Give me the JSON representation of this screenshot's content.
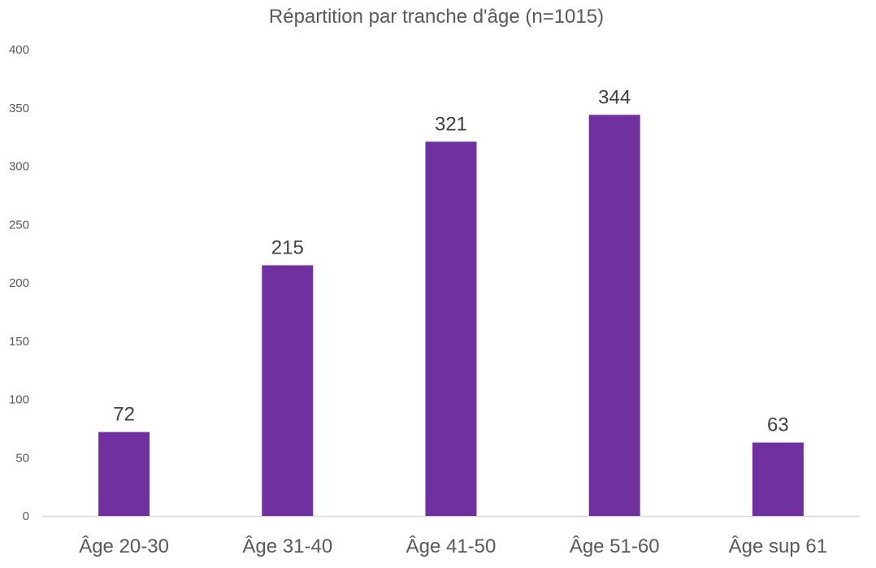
{
  "chart_data": {
    "type": "bar",
    "title": "Répartition par tranche d'âge (n=1015)",
    "xlabel": "",
    "ylabel": "",
    "categories": [
      "Âge 20-30",
      "Âge 31-40",
      "Âge 41-50",
      "Âge 51-60",
      "Âge sup 61"
    ],
    "values": [
      72,
      215,
      321,
      344,
      63
    ],
    "data_labels": [
      "72",
      "215",
      "321",
      "344",
      "63"
    ],
    "ylim": [
      0,
      400
    ],
    "yticks": [
      0,
      50,
      100,
      150,
      200,
      250,
      300,
      350,
      400
    ],
    "ytick_labels": [
      "0",
      "50",
      "100",
      "150",
      "200",
      "250",
      "300",
      "350",
      "400"
    ],
    "grid": false,
    "legend": "none",
    "bar_color": "#7030A0",
    "axis_color": "#d9d9d9"
  }
}
